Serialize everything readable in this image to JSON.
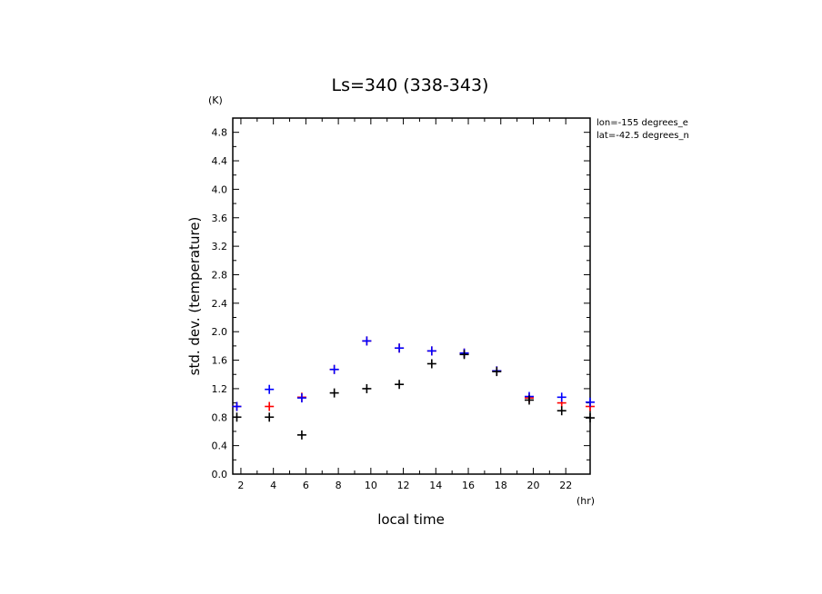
{
  "chart_data": {
    "type": "scatter",
    "title": "Ls=340 (338-343)",
    "xlabel": "local time",
    "ylabel": "std. dev. (temperature)",
    "x_unit": "(hr)",
    "y_unit": "(K)",
    "xlim": [
      1.5,
      23.5
    ],
    "ylim": [
      0.0,
      5.0
    ],
    "x_ticks": [
      2,
      4,
      6,
      8,
      10,
      12,
      14,
      16,
      18,
      20,
      22
    ],
    "y_ticks": [
      0.0,
      0.4,
      0.8,
      1.2,
      1.6,
      2.0,
      2.4,
      2.8,
      3.2,
      3.6,
      4.0,
      4.4,
      4.8
    ],
    "annotations": [
      "lon=-155 degrees_e",
      "lat=-42.5 degrees_n"
    ],
    "series": [
      {
        "color": "#ff0000",
        "x": [
          1.75,
          3.75,
          5.75,
          7.75,
          9.75,
          11.75,
          13.75,
          15.75,
          17.75,
          19.75,
          21.75,
          23.5
        ],
        "y": [
          0.95,
          0.95,
          1.08,
          1.47,
          1.87,
          1.77,
          1.73,
          1.7,
          1.45,
          1.07,
          1.0,
          0.95
        ]
      },
      {
        "color": "#0000ff",
        "x": [
          1.75,
          3.75,
          5.75,
          7.75,
          9.75,
          11.75,
          13.75,
          15.75,
          17.75,
          19.75,
          21.75,
          23.5
        ],
        "y": [
          0.95,
          1.19,
          1.07,
          1.47,
          1.87,
          1.77,
          1.73,
          1.7,
          1.45,
          1.09,
          1.08,
          1.01
        ]
      },
      {
        "color": "#000000",
        "x": [
          1.75,
          3.75,
          5.75,
          7.75,
          9.75,
          11.75,
          13.75,
          15.75,
          17.75,
          19.75,
          21.75,
          23.5
        ],
        "y": [
          0.8,
          0.8,
          0.55,
          1.14,
          1.2,
          1.26,
          1.55,
          1.68,
          1.44,
          1.04,
          0.89,
          0.79
        ]
      }
    ]
  }
}
